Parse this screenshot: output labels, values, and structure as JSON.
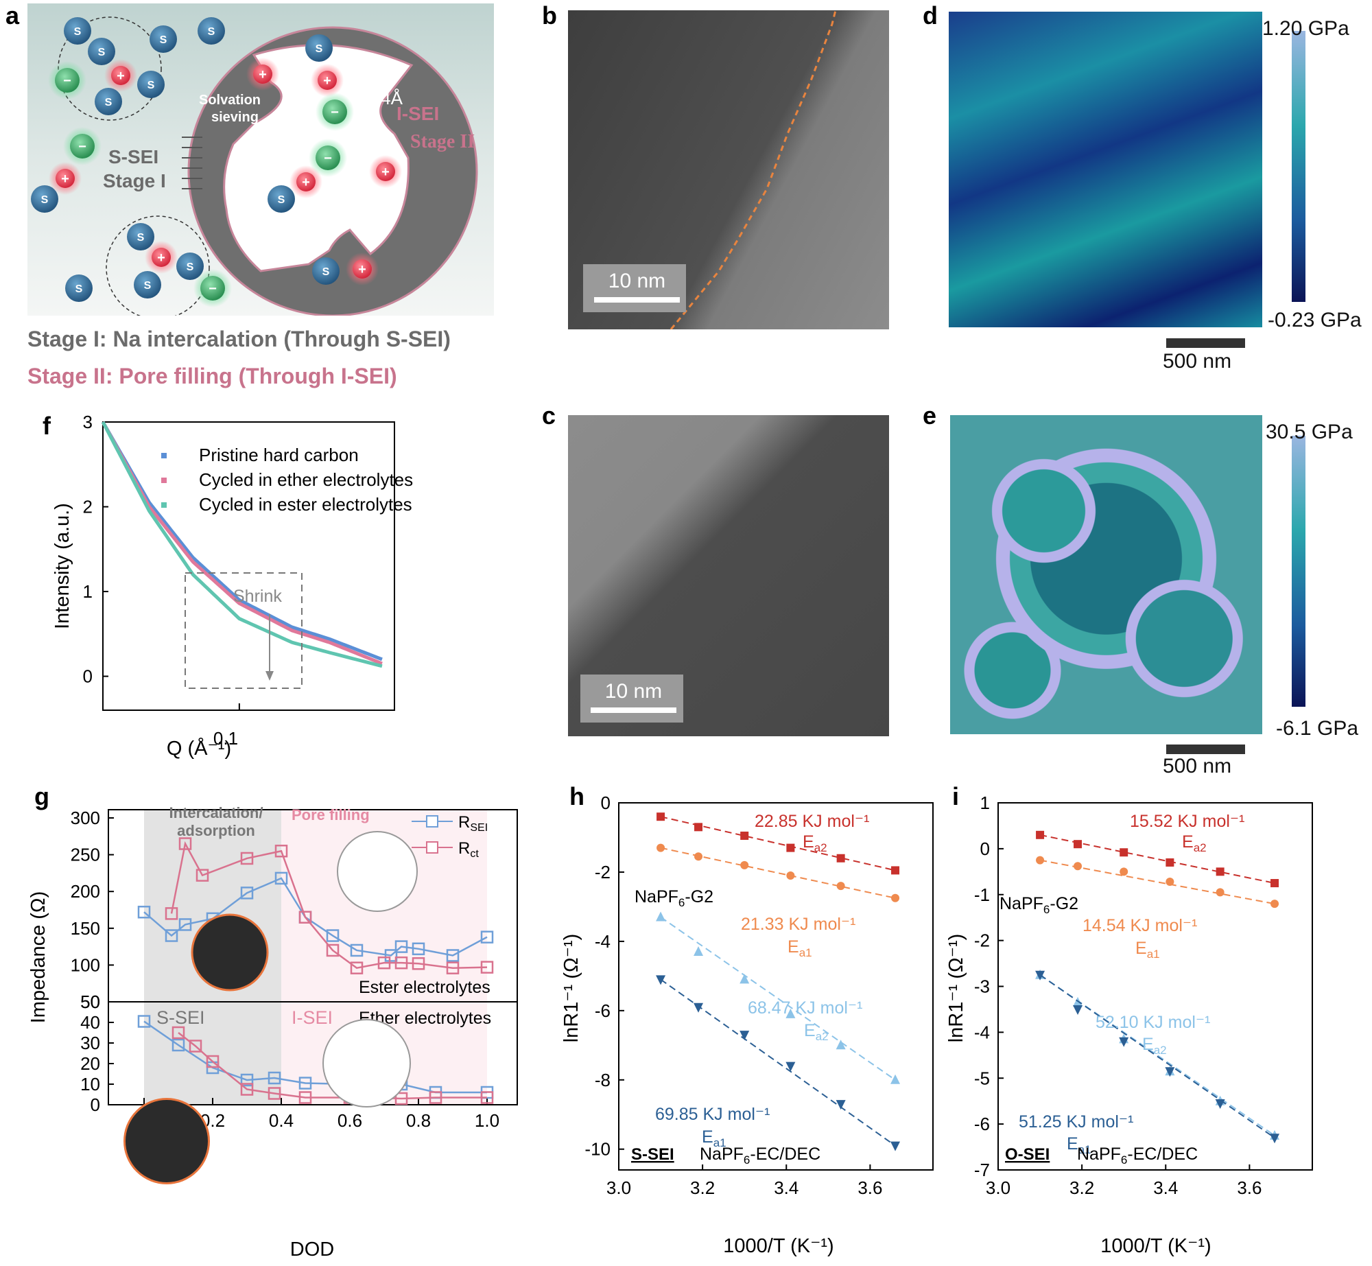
{
  "panel_labels": {
    "a": "a",
    "b": "b",
    "c": "c",
    "d": "d",
    "e": "e",
    "f": "f",
    "g": "g",
    "h": "h",
    "i": "i"
  },
  "panel_a": {
    "ion_s": "S",
    "cation": "+",
    "anion": "−",
    "solvation_sieving": "Solvation\nsieving",
    "pore_size": "~4Å",
    "i_sei": "I-SEI",
    "stage_ii": "Stage II",
    "s_sei": "S-SEI",
    "stage_i": "Stage I",
    "caption_stage_i": "Stage I: Na intercalation (Through S-SEI)",
    "caption_stage_ii": "Stage II: Pore filling (Through I-SEI)",
    "colors": {
      "stage_i": "#6b6b6b",
      "stage_ii": "#c8738c",
      "cation": "#e5384b",
      "anion": "#3daa65",
      "solvent": "#2f6f9a"
    }
  },
  "panel_b": {
    "scale_bar": "10 nm"
  },
  "panel_c": {
    "scale_bar": "10 nm"
  },
  "panel_d": {
    "cbar_max": "1.20 GPa",
    "cbar_min": "-0.23 GPa",
    "scale_bar": "500 nm"
  },
  "panel_e": {
    "cbar_max": "30.5 GPa",
    "cbar_min": "-6.1 GPa",
    "scale_bar": "500 nm"
  },
  "panel_f": {
    "annotation": "Shrink",
    "ylabel": "Intensity (a.u.)",
    "xlabel": "Q (Å⁻¹)",
    "x_tick": "0.1",
    "y_ticks": [
      "0",
      "1",
      "2",
      "3"
    ]
  },
  "panel_g": {
    "ylabel": "Impedance (Ω)",
    "xlabel": "DOD",
    "region_1": "Intercalation/\nadsorption",
    "region_2": "Pore filling",
    "s_sei": "S-SEI",
    "i_sei": "I-SEI",
    "ester": "Ester electrolytes",
    "ether": "Ether electrolytes",
    "legend_rsei": "R",
    "legend_rsei_sub": "SEI",
    "legend_rct": "R",
    "legend_rct_sub": "ct",
    "top_y_ticks": [
      "50",
      "100",
      "150",
      "200",
      "250",
      "300"
    ],
    "bottom_y_ticks": [
      "0",
      "10",
      "20",
      "30",
      "40",
      "50"
    ],
    "x_ticks": [
      "0.0",
      "0.2",
      "0.4",
      "0.6",
      "0.8",
      "1.0"
    ]
  },
  "panel_h": {
    "ylabel": "lnR1⁻¹ (Ω⁻¹)",
    "xlabel": "1000/T (K⁻¹)",
    "tag": "S-SEI",
    "label_g2": "NaPF₆-G2",
    "label_ecdec": "NaPF₆-EC/DEC",
    "ea_red": "22.85 KJ mol⁻¹",
    "ea_orange": "21.33 KJ mol⁻¹",
    "ea_lightblue": "68.47 KJ mol⁻¹",
    "ea_darkblue": "69.85 KJ mol⁻¹",
    "sub_a2": "E",
    "sub_a1": "E",
    "y_ticks": [
      "0",
      "-2",
      "-4",
      "-6",
      "-8",
      "-10"
    ],
    "x_ticks": [
      "3.0",
      "3.2",
      "3.4",
      "3.6"
    ]
  },
  "panel_i": {
    "ylabel": "lnR1⁻¹ (Ω⁻¹)",
    "xlabel": "1000/T (K⁻¹)",
    "tag": "O-SEI",
    "label_g2": "NaPF₆-G2",
    "label_ecdec": "NaPF₆-EC/DEC",
    "ea_red": "15.52 KJ mol⁻¹",
    "ea_orange": "14.54 KJ mol⁻¹",
    "ea_lightblue": "52.10 KJ mol⁻¹",
    "ea_darkblue": "51.25 KJ mol⁻¹",
    "y_ticks": [
      "1",
      "0",
      "-1",
      "-2",
      "-3",
      "-4",
      "-5",
      "-6",
      "-7"
    ],
    "x_ticks": [
      "3.0",
      "3.2",
      "3.4",
      "3.6"
    ]
  },
  "chart_data": [
    {
      "id": "f",
      "type": "line",
      "xlabel": "Q (Å⁻¹)",
      "ylabel": "Intensity (a.u.)",
      "xscale": "log",
      "ylim": [
        -0.4,
        3
      ],
      "series": [
        {
          "name": "Pristine hard carbon",
          "color": "#5b8fd6",
          "x": [
            0.035,
            0.05,
            0.07,
            0.1,
            0.15,
            0.2,
            0.3
          ],
          "values": [
            3.0,
            2.05,
            1.4,
            0.9,
            0.58,
            0.44,
            0.2
          ]
        },
        {
          "name": "Cycled in ether electrolytes",
          "color": "#e0789a",
          "x": [
            0.035,
            0.05,
            0.07,
            0.1,
            0.15,
            0.2,
            0.3
          ],
          "values": [
            3.0,
            2.0,
            1.35,
            0.86,
            0.54,
            0.4,
            0.15
          ]
        },
        {
          "name": "Cycled in ester electrolytes",
          "color": "#5fc5b0",
          "x": [
            0.035,
            0.05,
            0.07,
            0.1,
            0.15,
            0.2,
            0.3
          ],
          "values": [
            3.0,
            1.95,
            1.2,
            0.68,
            0.4,
            0.28,
            0.12
          ]
        }
      ]
    },
    {
      "id": "g-top",
      "type": "line",
      "title": "Ester electrolytes",
      "ylim": [
        50,
        300
      ],
      "series": [
        {
          "name": "RSEI",
          "color": "#6f9fd8",
          "x": [
            0,
            0.08,
            0.12,
            0.2,
            0.3,
            0.4,
            0.47,
            0.55,
            0.62,
            0.72,
            0.75,
            0.8,
            0.9,
            1.0
          ],
          "values": [
            172,
            140,
            155,
            163,
            198,
            218,
            165,
            140,
            120,
            113,
            125,
            122,
            113,
            138
          ]
        },
        {
          "name": "Rct",
          "color": "#d9728e",
          "x": [
            0.08,
            0.12,
            0.17,
            0.3,
            0.4,
            0.47,
            0.55,
            0.62,
            0.7,
            0.75,
            0.8,
            0.9,
            1.0
          ],
          "values": [
            170,
            265,
            222,
            245,
            255,
            165,
            120,
            96,
            103,
            103,
            102,
            96,
            97
          ]
        }
      ]
    },
    {
      "id": "g-bottom",
      "type": "line",
      "title": "Ether electrolytes",
      "ylim": [
        0,
        50
      ],
      "series": [
        {
          "name": "RSEI",
          "color": "#6f9fd8",
          "x": [
            0,
            0.1,
            0.2,
            0.3,
            0.38,
            0.47,
            0.6,
            0.66,
            0.75,
            0.85,
            1.0
          ],
          "values": [
            40.5,
            29,
            18,
            12,
            13,
            10.5,
            10,
            10.5,
            10,
            6,
            6
          ]
        },
        {
          "name": "Rct",
          "color": "#d9728e",
          "x": [
            0.1,
            0.15,
            0.2,
            0.3,
            0.38,
            0.47,
            0.6,
            0.66,
            0.75,
            0.85,
            1.0
          ],
          "values": [
            35,
            28.5,
            21,
            7.5,
            5.5,
            3.5,
            3.5,
            3.5,
            3,
            3.5,
            3.5
          ]
        }
      ]
    },
    {
      "id": "h",
      "type": "scatter",
      "xlabel": "1000/T (K⁻¹)",
      "ylabel": "lnR1⁻¹ (Ω⁻¹)",
      "xlim": [
        3.0,
        3.75
      ],
      "ylim": [
        -10.6,
        0
      ],
      "series": [
        {
          "name": "NaPF6-G2 Ea2",
          "color": "#c8312c",
          "x": [
            3.1,
            3.19,
            3.3,
            3.41,
            3.53,
            3.66
          ],
          "values": [
            -0.4,
            -0.7,
            -0.95,
            -1.3,
            -1.6,
            -1.95
          ]
        },
        {
          "name": "NaPF6-G2 Ea1",
          "color": "#ef8a4e",
          "x": [
            3.1,
            3.19,
            3.3,
            3.41,
            3.53,
            3.66
          ],
          "values": [
            -1.3,
            -1.55,
            -1.8,
            -2.1,
            -2.4,
            -2.75
          ]
        },
        {
          "name": "NaPF6-EC/DEC Ea2",
          "color": "#8cc3e8",
          "x": [
            3.1,
            3.19,
            3.3,
            3.41,
            3.53,
            3.66
          ],
          "values": [
            -3.3,
            -4.3,
            -5.1,
            -6.1,
            -7.0,
            -8.0
          ]
        },
        {
          "name": "NaPF6-EC/DEC Ea1",
          "color": "#2b5f94",
          "x": [
            3.1,
            3.19,
            3.3,
            3.41,
            3.53,
            3.66
          ],
          "values": [
            -5.1,
            -5.9,
            -6.7,
            -7.6,
            -8.7,
            -9.9
          ]
        }
      ]
    },
    {
      "id": "i",
      "type": "scatter",
      "xlabel": "1000/T (K⁻¹)",
      "ylabel": "lnR1⁻¹ (Ω⁻¹)",
      "xlim": [
        3.0,
        3.75
      ],
      "ylim": [
        -7,
        1
      ],
      "series": [
        {
          "name": "NaPF6-G2 Ea2",
          "color": "#c8312c",
          "x": [
            3.1,
            3.19,
            3.3,
            3.41,
            3.53,
            3.66
          ],
          "values": [
            0.3,
            0.1,
            -0.08,
            -0.3,
            -0.5,
            -0.75
          ]
        },
        {
          "name": "NaPF6-G2 Ea1",
          "color": "#ef8a4e",
          "x": [
            3.1,
            3.19,
            3.3,
            3.41,
            3.53,
            3.66
          ],
          "values": [
            -0.25,
            -0.38,
            -0.5,
            -0.72,
            -0.95,
            -1.2
          ]
        },
        {
          "name": "NaPF6-EC/DEC Ea2",
          "color": "#8cc3e8",
          "x": [
            3.1,
            3.19,
            3.3,
            3.41,
            3.53,
            3.66
          ],
          "values": [
            -2.75,
            -3.35,
            -4.15,
            -4.85,
            -5.5,
            -6.25
          ]
        },
        {
          "name": "NaPF6-EC/DEC Ea1",
          "color": "#2b5f94",
          "x": [
            3.1,
            3.19,
            3.3,
            3.41,
            3.53,
            3.66
          ],
          "values": [
            -2.75,
            -3.5,
            -4.2,
            -4.85,
            -5.55,
            -6.3
          ]
        }
      ]
    }
  ]
}
